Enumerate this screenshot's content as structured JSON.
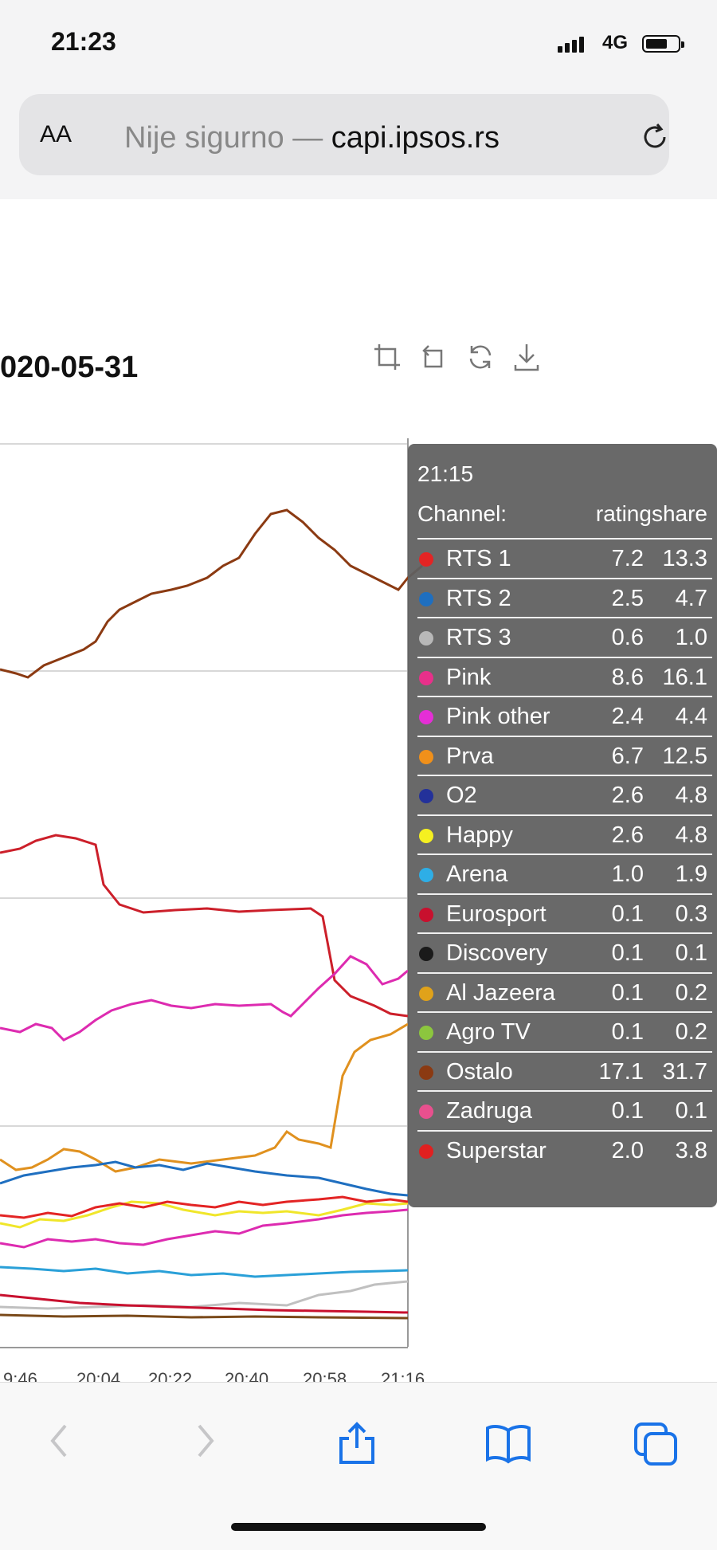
{
  "status_bar": {
    "time": "21:23",
    "network": "4G"
  },
  "address_bar": {
    "text_size_label": "AA",
    "security_label": "Nije sigurno — ",
    "domain": "capi.ipsos.rs"
  },
  "page": {
    "date_title": "020-05-31"
  },
  "chart_data": {
    "type": "line",
    "x_tick_labels": [
      "9:46",
      "20:04",
      "20:22",
      "20:40",
      "20:58",
      "21:16"
    ],
    "visible_series_colors": [
      "#8b3a12",
      "#cc1f2a",
      "#dd2bb0",
      "#e0911f",
      "#1f6fc0",
      "#f0e62a",
      "#2aa0d8",
      "#c0c0c0",
      "#7a4a1a"
    ],
    "grid": true
  },
  "tooltip": {
    "time": "21:15",
    "header_channel": "Channel:",
    "header_values": "ratingshare",
    "rows": [
      {
        "name": "RTS 1",
        "rating": "7.2",
        "share": "13.3",
        "color": "#e32424"
      },
      {
        "name": "RTS 2",
        "rating": "2.5",
        "share": "4.7",
        "color": "#1f6fc0"
      },
      {
        "name": "RTS 3",
        "rating": "0.6",
        "share": "1.0",
        "color": "#b8b8b8"
      },
      {
        "name": "Pink",
        "rating": "8.6",
        "share": "16.1",
        "color": "#e8308a"
      },
      {
        "name": "Pink other",
        "rating": "2.4",
        "share": "4.4",
        "color": "#e52ed6"
      },
      {
        "name": "Prva",
        "rating": "6.7",
        "share": "12.5",
        "color": "#f0901a"
      },
      {
        "name": "O2",
        "rating": "2.6",
        "share": "4.8",
        "color": "#23319a"
      },
      {
        "name": "Happy",
        "rating": "2.6",
        "share": "4.8",
        "color": "#f5f020"
      },
      {
        "name": "Arena",
        "rating": "1.0",
        "share": "1.9",
        "color": "#2eaee6"
      },
      {
        "name": "Eurosport",
        "rating": "0.1",
        "share": "0.3",
        "color": "#c8102e"
      },
      {
        "name": "Discovery",
        "rating": "0.1",
        "share": "0.1",
        "color": "#1a1a1a"
      },
      {
        "name": "Al Jazeera",
        "rating": "0.1",
        "share": "0.2",
        "color": "#e0a21a"
      },
      {
        "name": "Agro TV",
        "rating": "0.1",
        "share": "0.2",
        "color": "#8cc63e"
      },
      {
        "name": "Ostalo",
        "rating": "17.1",
        "share": "31.7",
        "color": "#8b3a12"
      },
      {
        "name": "Zadruga",
        "rating": "0.1",
        "share": "0.1",
        "color": "#e8508e"
      },
      {
        "name": "Superstar",
        "rating": "2.0",
        "share": "3.8",
        "color": "#e02020"
      }
    ]
  }
}
